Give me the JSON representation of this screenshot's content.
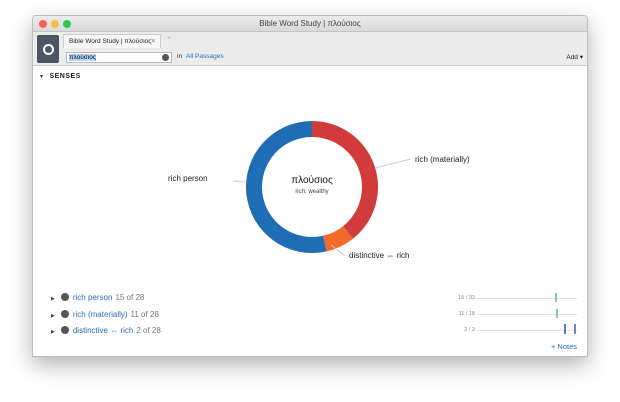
{
  "window": {
    "title": "Bible Word Study | πλούσιος"
  },
  "tab": {
    "label": "Bible Word Study | πλούσιος",
    "close": "✕",
    "new": "+"
  },
  "search": {
    "value": "πλούσιος",
    "in_label": "in",
    "scope": "All Passages",
    "add": "Add ▾"
  },
  "section": {
    "title": "SENSES"
  },
  "chart_data": {
    "type": "pie",
    "center_title": "πλούσιος",
    "center_subtitle": "rich; wealthy",
    "slices": [
      {
        "label": "rich (materially)",
        "value": 11,
        "color": "#d13b3b"
      },
      {
        "label": "distinctive ⇔ rich",
        "value": 2,
        "color": "#f26b2a"
      },
      {
        "label": "rich person",
        "value": 15,
        "color": "#1f6db5"
      }
    ]
  },
  "senses": [
    {
      "label": "rich person",
      "count": "15 of 28",
      "frac": "15 / 33"
    },
    {
      "label": "rich (materially)",
      "count": "11 of 28",
      "frac": "11 / 18"
    },
    {
      "label": "distinctive ⇔ rich",
      "count": "2 of 28",
      "frac": "2 / 2"
    }
  ],
  "notes": "+ Notes"
}
